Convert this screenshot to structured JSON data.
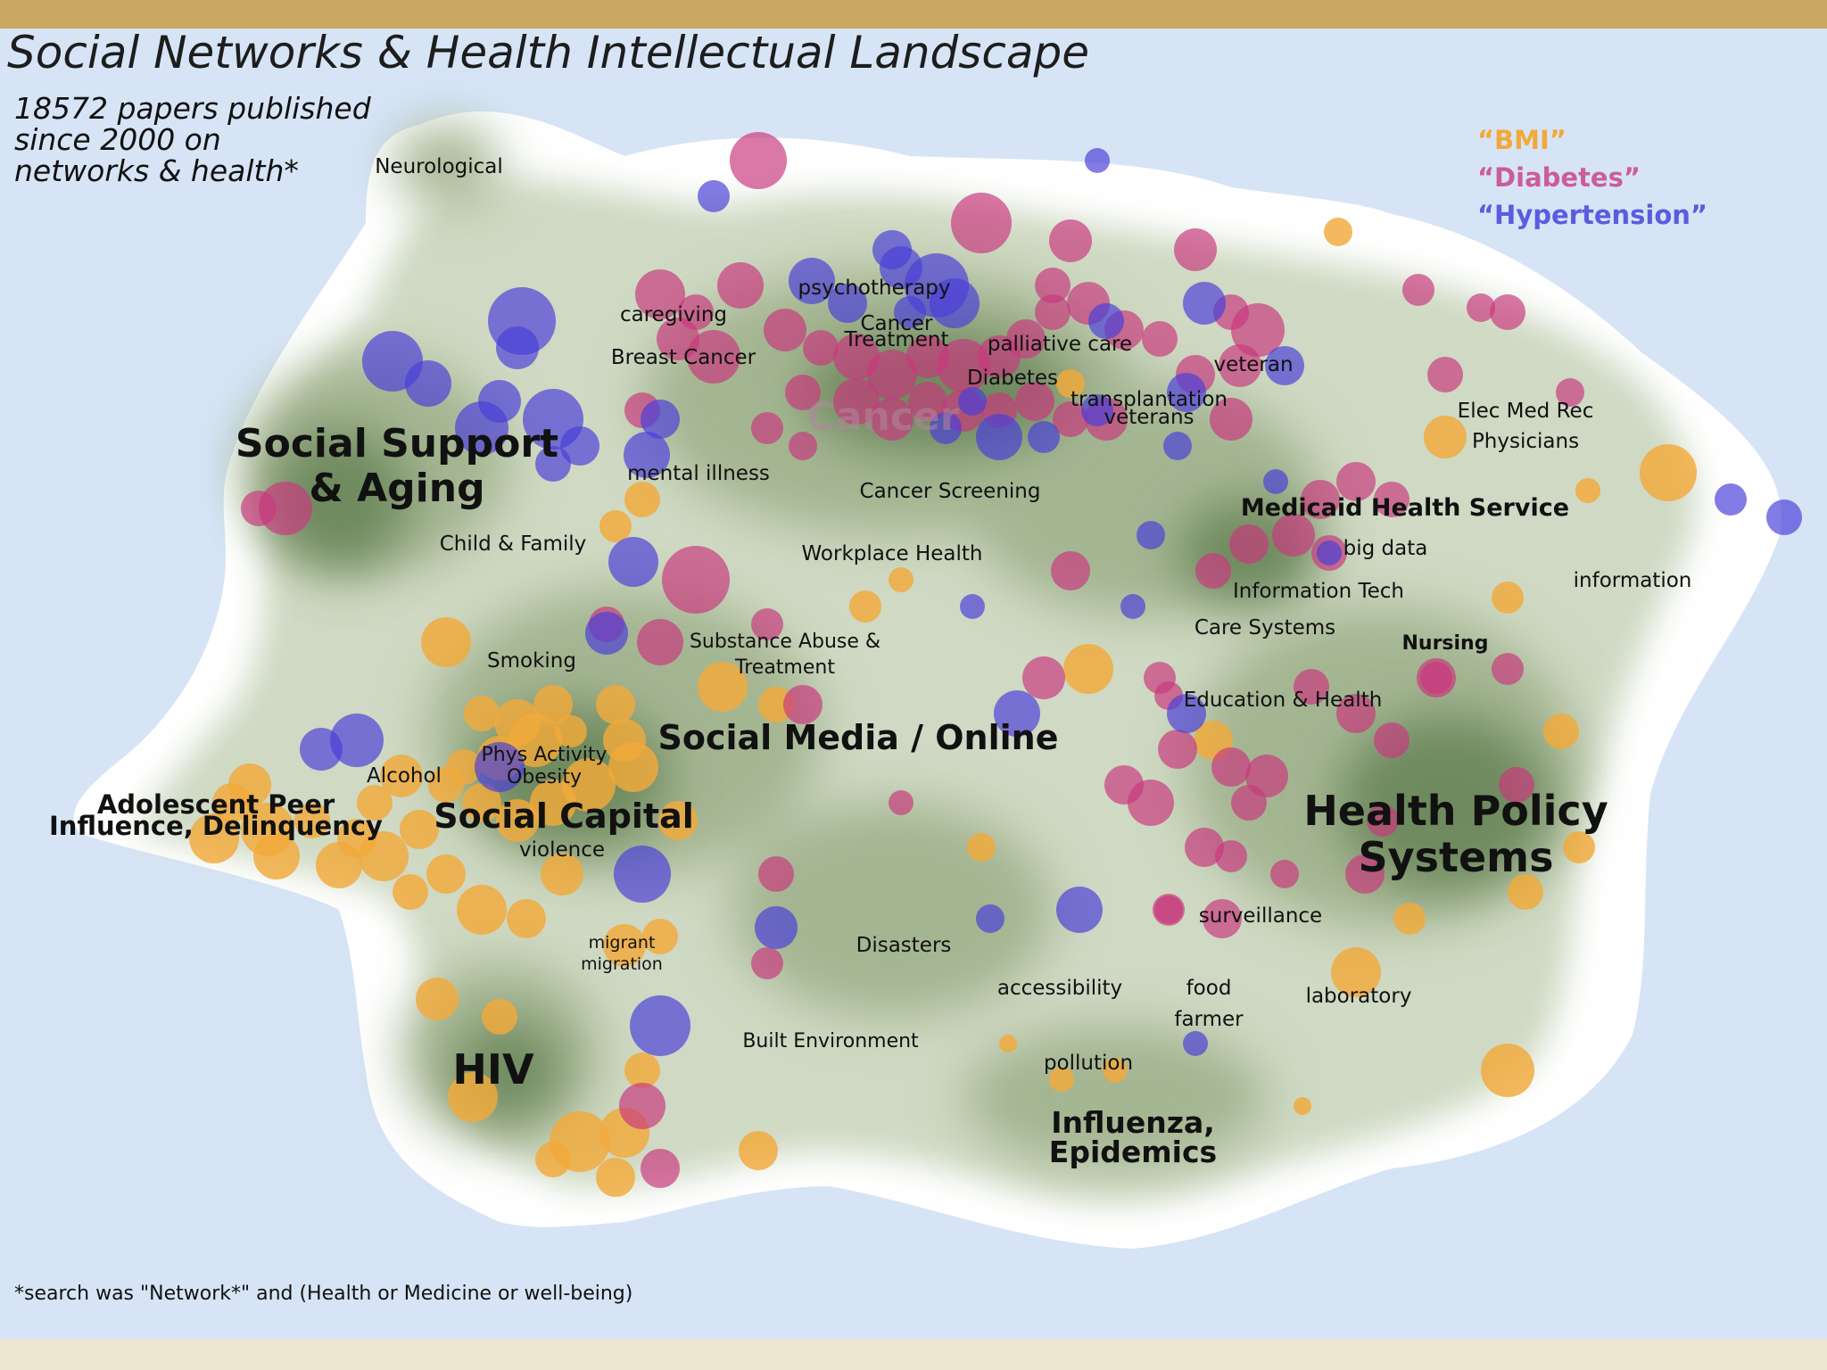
{
  "title": "Social Networks & Health Intellectual Landscape",
  "subtitle": [
    "18572 papers published",
    "since 2000 on",
    "networks & health*"
  ],
  "legend": [
    {
      "label": "“BMI”",
      "color": "#f2a93a"
    },
    {
      "label": "“Diabetes”",
      "color": "#cc5c9a"
    },
    {
      "label": "“Hypertension”",
      "color": "#5a5ce0"
    }
  ],
  "footnote": "*search was \"Network*\" and (Health or Medicine or well-being)",
  "colors": {
    "ocean": "#d6e4f6",
    "bmi": "#f2a93a",
    "diabetes": "#c8387e",
    "hypertension": "#4a3ed8",
    "top_bar": "#c9a862",
    "bottom_bar": "#efe6cf"
  },
  "regions": {
    "major": [
      {
        "id": "social-support-aging",
        "lines": [
          "Social Support",
          "& Aging"
        ]
      },
      {
        "id": "social-media-online",
        "lines": [
          "Social Media / Online"
        ]
      },
      {
        "id": "social-capital",
        "lines": [
          "Social Capital"
        ]
      },
      {
        "id": "health-policy-systems",
        "lines": [
          "Health Policy",
          "Systems"
        ]
      },
      {
        "id": "hiv",
        "lines": [
          "HIV"
        ]
      },
      {
        "id": "adolescent-peer",
        "lines": [
          "Adolescent Peer",
          "Influence, Delinquency"
        ]
      },
      {
        "id": "influenza-epidemics",
        "lines": [
          "Influenza,",
          "Epidemics"
        ]
      },
      {
        "id": "medicaid-health-service",
        "lines": [
          "Medicaid Health Service"
        ]
      },
      {
        "id": "nursing",
        "lines": [
          "Nursing"
        ]
      }
    ],
    "minor": [
      {
        "id": "neurological",
        "lines": [
          "Neurological"
        ]
      },
      {
        "id": "caregiving",
        "lines": [
          "caregiving"
        ]
      },
      {
        "id": "breast-cancer",
        "lines": [
          "Breast Cancer"
        ]
      },
      {
        "id": "psychotherapy",
        "lines": [
          "psychotherapy"
        ]
      },
      {
        "id": "cancer-treatment",
        "lines": [
          "Cancer",
          "Treatment"
        ]
      },
      {
        "id": "palliative-care",
        "lines": [
          "palliative care"
        ]
      },
      {
        "id": "diabetes",
        "lines": [
          "Diabetes"
        ]
      },
      {
        "id": "veteran",
        "lines": [
          "veteran"
        ]
      },
      {
        "id": "transplantation",
        "lines": [
          "transplantation",
          "veterans"
        ]
      },
      {
        "id": "cancer",
        "lines": [
          "Cancer"
        ]
      },
      {
        "id": "mental-illness",
        "lines": [
          "mental illness"
        ]
      },
      {
        "id": "cancer-screening",
        "lines": [
          "Cancer Screening"
        ]
      },
      {
        "id": "child-family",
        "lines": [
          "Child & Family"
        ]
      },
      {
        "id": "workplace-health",
        "lines": [
          "Workplace Health"
        ]
      },
      {
        "id": "elec-med-rec",
        "lines": [
          "Elec Med Rec",
          "Physicians"
        ]
      },
      {
        "id": "big-data",
        "lines": [
          "big data"
        ]
      },
      {
        "id": "information",
        "lines": [
          "information"
        ]
      },
      {
        "id": "information-tech",
        "lines": [
          "Information Tech"
        ]
      },
      {
        "id": "care-systems",
        "lines": [
          "Care Systems"
        ]
      },
      {
        "id": "substance-abuse",
        "lines": [
          "Substance Abuse &",
          "Treatment"
        ]
      },
      {
        "id": "smoking",
        "lines": [
          "Smoking"
        ]
      },
      {
        "id": "education-health",
        "lines": [
          "Education & Health"
        ]
      },
      {
        "id": "phys-activity",
        "lines": [
          "Phys Activity",
          "Obesity"
        ]
      },
      {
        "id": "alcohol",
        "lines": [
          "Alcohol"
        ]
      },
      {
        "id": "violence",
        "lines": [
          "violence"
        ]
      },
      {
        "id": "migrant",
        "lines": [
          "migrant",
          "migration"
        ]
      },
      {
        "id": "disasters",
        "lines": [
          "Disasters"
        ]
      },
      {
        "id": "surveillance",
        "lines": [
          "surveillance"
        ]
      },
      {
        "id": "accessibility",
        "lines": [
          "accessibility"
        ]
      },
      {
        "id": "food-farmer",
        "lines": [
          "food",
          "farmer"
        ]
      },
      {
        "id": "laboratory",
        "lines": [
          "laboratory"
        ]
      },
      {
        "id": "built-environment",
        "lines": [
          "Built Environment"
        ]
      },
      {
        "id": "pollution",
        "lines": [
          "pollution"
        ]
      }
    ]
  }
}
